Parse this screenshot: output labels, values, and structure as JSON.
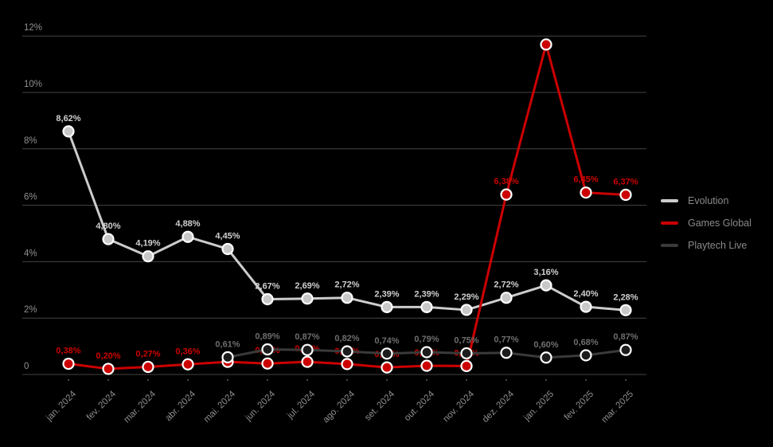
{
  "colors": {
    "background": "#000000",
    "gridline": "#454545",
    "axis_text": "#8f8f8f",
    "legend_text": "#8a8a8a",
    "marker_stroke": "#ffffff"
  },
  "chart_data": {
    "type": "line",
    "title": "",
    "xlabel": "",
    "ylabel": "",
    "grid": true,
    "legend_position": "right",
    "categories": [
      "jan. 2024",
      "fev. 2024",
      "mar. 2024",
      "abr. 2024",
      "mai. 2024",
      "jun. 2024",
      "jul. 2024",
      "ago. 2024",
      "set. 2024",
      "out. 2024",
      "nov. 2024",
      "dez. 2024",
      "jan. 2025",
      "fev. 2025",
      "mar. 2025"
    ],
    "y_axis": {
      "range": [
        0,
        12
      ],
      "ticks": [
        {
          "value": 0,
          "label": "0"
        },
        {
          "value": 2,
          "label": "2%"
        },
        {
          "value": 4,
          "label": "4%"
        },
        {
          "value": 6,
          "label": "6%"
        },
        {
          "value": 8,
          "label": "8%"
        },
        {
          "value": 10,
          "label": "10%"
        },
        {
          "value": 12,
          "label": "12%"
        }
      ]
    },
    "series": [
      {
        "name": "Evolution",
        "color": "#cccccc",
        "marker_fill": "#c8c8c8",
        "label_color": "#cfcfcf",
        "values": [
          8.62,
          4.8,
          4.19,
          4.88,
          4.45,
          2.67,
          2.69,
          2.72,
          2.39,
          2.39,
          2.29,
          2.72,
          3.16,
          2.4,
          2.28
        ],
        "labels": [
          "8,62%",
          "4,80%",
          "4,19%",
          "4,88%",
          "4,45%",
          "2,67%",
          "2,69%",
          "2,72%",
          "2,39%",
          "2,39%",
          "2,29%",
          "2,72%",
          "3,16%",
          "2,40%",
          "2,28%"
        ]
      },
      {
        "name": "Games Global",
        "color": "#cc0000",
        "marker_fill": "#cc0000",
        "label_color": "#cc0000",
        "values": [
          0.38,
          0.2,
          0.27,
          0.36,
          0.45,
          0.39,
          0.45,
          0.37,
          0.25,
          0.31,
          0.3,
          6.38,
          11.7,
          6.45,
          6.37
        ],
        "labels": [
          "0,38%",
          "0,20%",
          "0,27%",
          "0,36%",
          "",
          "0,39%",
          "0,45%",
          "0,37%",
          "0,25%",
          "0,31%",
          "0,30%",
          "6,38%",
          "",
          "6,45%",
          "6,37%"
        ]
      },
      {
        "name": "Playtech Live",
        "color": "#3a3a3a",
        "marker_fill": "#1c1c1c",
        "label_color": "#6e6e6e",
        "values": [
          null,
          null,
          null,
          null,
          0.61,
          0.89,
          0.87,
          0.82,
          0.74,
          0.79,
          0.75,
          0.77,
          0.6,
          0.68,
          0.87
        ],
        "labels": [
          "",
          "",
          "",
          "",
          "0,61%",
          "0,89%",
          "0,87%",
          "0,82%",
          "0,74%",
          "0,79%",
          "0,75%",
          "0,77%",
          "0,60%",
          "0,68%",
          "0,87%"
        ]
      }
    ]
  }
}
